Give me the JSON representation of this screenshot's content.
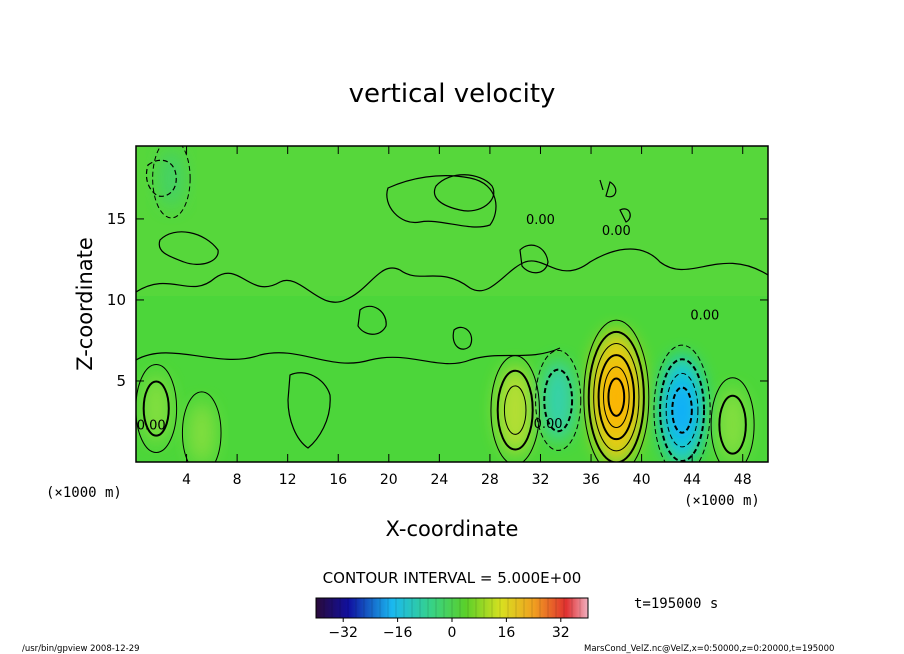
{
  "chart_data": {
    "type": "heatmap",
    "title": "vertical velocity",
    "xlabel": "X-coordinate",
    "ylabel": "Z-coordinate",
    "x_unit_left": "(×1000 m)",
    "x_unit_right": "(×1000 m)",
    "xlim": [
      0,
      50
    ],
    "ylim": [
      0,
      19.5
    ],
    "x_ticks": [
      "4",
      "8",
      "12",
      "16",
      "20",
      "24",
      "28",
      "32",
      "36",
      "40",
      "44",
      "48"
    ],
    "x_tick_values": [
      4,
      8,
      12,
      16,
      20,
      24,
      28,
      32,
      36,
      40,
      44,
      48
    ],
    "y_ticks": [
      "5",
      "10",
      "15"
    ],
    "y_tick_values": [
      5,
      10,
      15
    ],
    "contour_labels": [
      {
        "text": "0.00",
        "x": 32,
        "z": 14.7
      },
      {
        "text": "0.00",
        "x": 38,
        "z": 14.0
      },
      {
        "text": "0.00",
        "x": 45,
        "z": 8.8
      },
      {
        "text": "0.00",
        "x": 1.2,
        "z": 2.0
      },
      {
        "text": "0.00",
        "x": 32.6,
        "z": 2.1
      }
    ],
    "features": [
      {
        "x": 38.0,
        "z": 4.0,
        "value": 30
      },
      {
        "x": 30.0,
        "z": 3.2,
        "value": 15
      },
      {
        "x": 43.2,
        "z": 3.2,
        "value": -22
      },
      {
        "x": 33.4,
        "z": 3.8,
        "value": -12
      },
      {
        "x": 47.2,
        "z": 2.3,
        "value": 10
      },
      {
        "x": 1.6,
        "z": 3.3,
        "value": 8
      },
      {
        "x": 5.2,
        "z": 1.8,
        "value": 6
      },
      {
        "x": 2.8,
        "z": 17.5,
        "value": -5
      }
    ],
    "contour_interval": "CONTOUR INTERVAL = 5.000E+00",
    "time_label": "t=195000 s",
    "colorbar": {
      "range": [
        -40,
        40
      ],
      "tick_labels": [
        "−32",
        "−16",
        "0",
        "16",
        "32"
      ],
      "tick_values": [
        -32,
        -16,
        0,
        16,
        32
      ]
    },
    "colors": {
      "background_field": "#4cd63a",
      "positive": "#ffd41a",
      "negative": "#1ac9f2"
    }
  },
  "footer": {
    "left": "/usr/bin/gpview  2008-12-29",
    "right": "MarsCond_VelZ.nc@VelZ,x=0:50000,z=0:20000,t=195000"
  }
}
